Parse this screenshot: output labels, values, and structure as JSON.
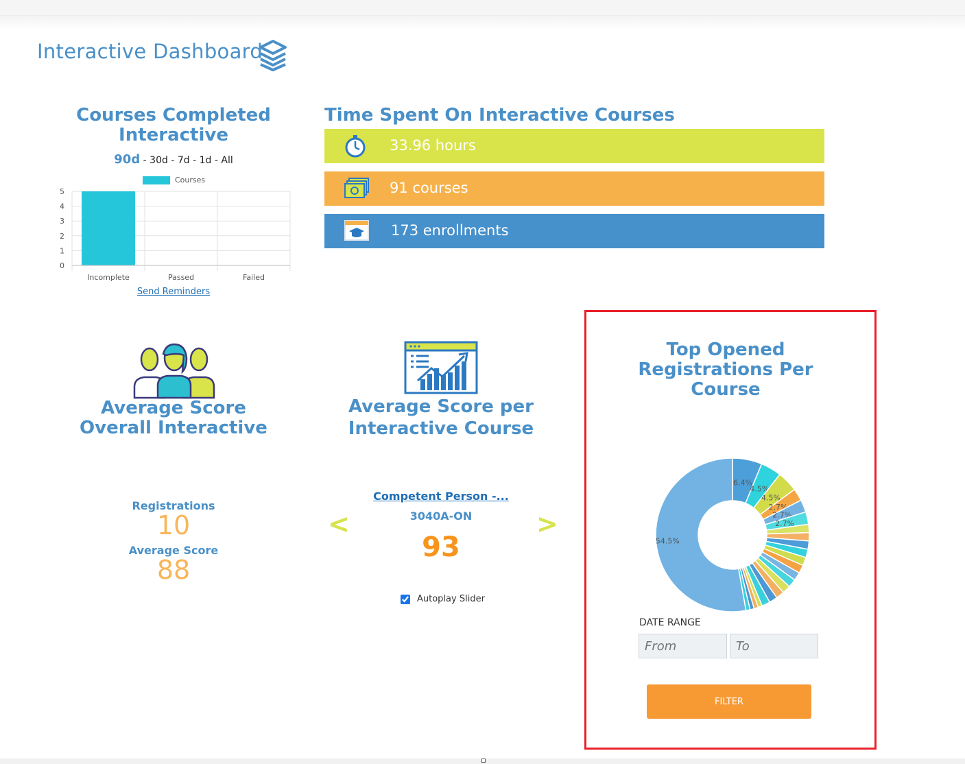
{
  "header": {
    "title": "Interactive Dashboard",
    "icon": "layers-icon"
  },
  "courses_completed": {
    "title": "Courses Completed Interactive",
    "ranges": [
      "90d",
      "30d",
      "7d",
      "1d",
      "All"
    ],
    "active_range": "90d",
    "send_reminders": "Send Reminders"
  },
  "time_spent": {
    "title": "Time Spent On Interactive Courses",
    "hours": "33.96 hours",
    "courses": "91 courses",
    "enrollments": "173 enrollments",
    "colors": [
      "#d9e34a",
      "#f7b14a",
      "#4690cc"
    ]
  },
  "avg_overall": {
    "title": "Average Score Overall Interactive",
    "registrations_label": "Registrations",
    "registrations_value": "10",
    "avg_label": "Average Score",
    "avg_value": "88"
  },
  "avg_per_course": {
    "title": "Average Score per Interactive Course",
    "prev": "<",
    "next": ">",
    "course_name": "Competent Person -...",
    "course_code": "3040A-ON",
    "score": "93",
    "autoplay_label": "Autoplay Slider",
    "autoplay_checked": true
  },
  "top_opened": {
    "title": "Top Opened Registrations Per Course",
    "date_range_label": "DATE RANGE",
    "from_placeholder": "From",
    "to_placeholder": "To",
    "filter_label": "FILTER"
  },
  "chart_data": [
    {
      "type": "bar",
      "categories": [
        "Incomplete",
        "Passed",
        "Failed"
      ],
      "series": [
        {
          "name": "Courses",
          "values": [
            5,
            0,
            0
          ]
        }
      ],
      "ylim": [
        0,
        5
      ],
      "yticks": [
        "0",
        "1",
        "2",
        "3",
        "4",
        "5"
      ],
      "grid": true,
      "legend": "top",
      "color": "#26c6da"
    },
    {
      "type": "pie",
      "donut": true,
      "values": [
        6.4,
        4.5,
        4.5,
        2.7,
        2.7,
        2.7,
        1.8,
        1.8,
        1.8,
        1.8,
        1.8,
        1.8,
        1.8,
        1.8,
        1.8,
        1.8,
        1.8,
        1.8,
        0.9,
        0.9,
        0.9,
        0.9,
        54.5
      ],
      "labels": [
        "6.4%",
        "4.5%",
        "4.5%",
        "2.7%",
        "2.7%",
        "2.7%",
        "",
        "",
        "",
        "",
        "",
        "",
        "",
        "",
        "",
        "",
        "",
        "",
        "",
        "",
        "",
        "",
        "54.5%"
      ],
      "colors": [
        "#4d9fd9",
        "#2fd3de",
        "#d2dc4a",
        "#f5a644",
        "#73b1e1",
        "#4fdbe0",
        "#d9e366",
        "#f4b166",
        "#4b9cd8",
        "#32d1dd",
        "#cfdc4d",
        "#f5a244",
        "#7ab4e2",
        "#47d5df",
        "#dbe05c",
        "#f3b062",
        "#4c98d4",
        "#3ad0db",
        "#d5de58",
        "#f2ad60",
        "#4b97d3",
        "#3ccfdc",
        "#72b3e3"
      ]
    }
  ]
}
